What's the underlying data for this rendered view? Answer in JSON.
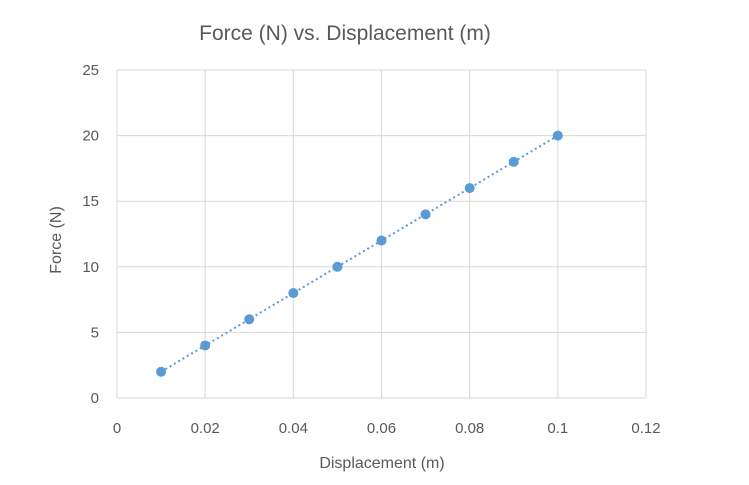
{
  "chart_data": {
    "type": "scatter",
    "title": "Force (N) vs. Displacement (m)",
    "xlabel": "Displacement (m)",
    "ylabel": "Force (N)",
    "xlim": [
      0,
      0.12
    ],
    "ylim": [
      0,
      25
    ],
    "x_ticks": [
      "0",
      "0.02",
      "0.04",
      "0.06",
      "0.08",
      "0.1",
      "0.12"
    ],
    "y_ticks": [
      "0",
      "5",
      "10",
      "15",
      "20",
      "25"
    ],
    "grid": true,
    "legend": "none",
    "trendline": "linear, dotted",
    "series": [
      {
        "color": "#5b9bd5",
        "x": [
          0.01,
          0.02,
          0.03,
          0.04,
          0.05,
          0.06,
          0.07,
          0.08,
          0.09,
          0.1
        ],
        "y": [
          2,
          4,
          6,
          8,
          10,
          12,
          14,
          16,
          18,
          20
        ]
      }
    ],
    "colors": {
      "grid": "#d9d9d9",
      "text": "#595959",
      "marker": "#5b9bd5"
    }
  }
}
